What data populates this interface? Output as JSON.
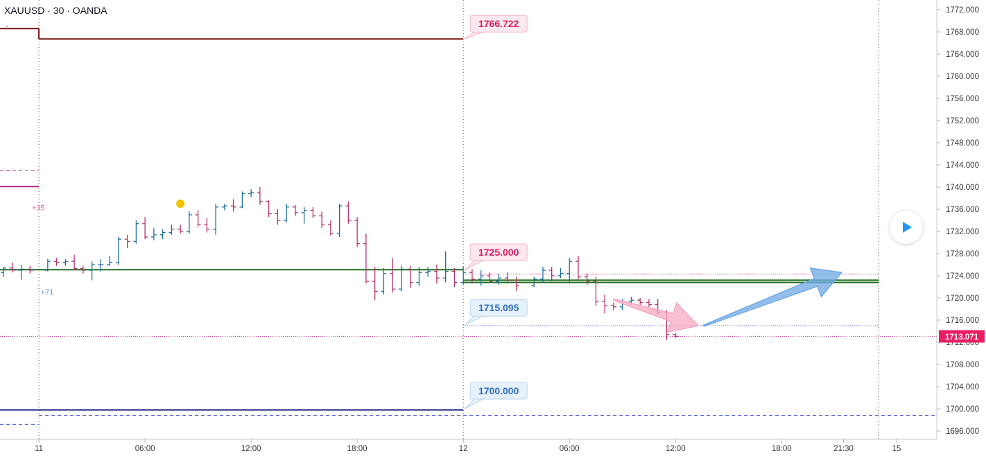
{
  "header": {
    "symbol_line": "XAUUSD · 30 · OANDA",
    "dot": "·"
  },
  "colors": {
    "up_bar": "#1f6e9e",
    "down_bar": "#b5316f",
    "dark_red_line": "#7a1010",
    "green_line": "#1b6e1b",
    "navy_line": "#1a237e",
    "magenta_line": "#b4237c",
    "blue_dashed": "#3f51d9",
    "pink_label": "#d81b60",
    "blue_label": "#2f6fbf",
    "price_tag": "#e91e63",
    "pink_arrow": "#f7a9c1",
    "blue_arrow": "#6fa8e6"
  },
  "chart_data": {
    "type": "bar",
    "title": "XAUUSD · 30 · OANDA",
    "y_axis": {
      "ticks": [
        1772,
        1768,
        1764,
        1760,
        1756,
        1752,
        1748,
        1744,
        1740,
        1736,
        1732,
        1728,
        1724,
        1720,
        1716,
        1712,
        1708,
        1704,
        1700,
        1696
      ],
      "tick_labels": [
        "1772.000",
        "1768.000",
        "1764.000",
        "1760.000",
        "1756.000",
        "1752.000",
        "1748.000",
        "1744.000",
        "1740.000",
        "1736.000",
        "1732.000",
        "1728.000",
        "1724.000",
        "1720.000",
        "1716.000",
        "1712.000",
        "1708.000",
        "1704.000",
        "1700.000",
        "1696.000"
      ],
      "range": [
        1695,
        1773
      ]
    },
    "x_axis": {
      "tick_labels": [
        "11",
        "06:00",
        "12:00",
        "18:00",
        "12",
        "06:00",
        "12:00",
        "18:00",
        "21:30",
        "15"
      ],
      "tick_hours": [
        0,
        6,
        12,
        18,
        24,
        30,
        36,
        42,
        45.5,
        48.5
      ],
      "range": [
        -2.2,
        52.5
      ]
    },
    "session_separators_hours": [
      0,
      24,
      47.5
    ],
    "current_price": {
      "value": 1713.071,
      "label": "1713.071"
    },
    "labels": [
      {
        "text": "1766.722",
        "price": 1766.722,
        "color": "pink"
      },
      {
        "text": "1725.000",
        "price": 1725.0,
        "color": "pink"
      },
      {
        "text": "1715.095",
        "price": 1715.095,
        "color": "blue"
      },
      {
        "text": "1700.000",
        "price": 1700.0,
        "color": "blue"
      }
    ],
    "annotations": [
      {
        "text": "+35",
        "hour": -0.4,
        "price": 1735.8
      },
      {
        "text": "+71",
        "hour": 0.1,
        "price": 1720.6
      }
    ],
    "event_marker": {
      "hour": 8,
      "price": 1737
    },
    "levels": [
      {
        "name": "prior-day-high",
        "segments": [
          [
            -2.2,
            0,
            1768.6
          ],
          [
            0,
            24,
            1766.722
          ]
        ],
        "style": "solid",
        "color": "dark_red_line"
      },
      {
        "name": "pivot-green",
        "segments": [
          [
            -2.2,
            24,
            1725.1
          ]
        ],
        "style": "solid",
        "color": "green_line"
      },
      {
        "name": "pivot-green-next",
        "segments": [
          [
            24,
            47.5,
            1722.8
          ],
          [
            24,
            47.5,
            1723.2
          ]
        ],
        "style": "solid",
        "color": "green_line"
      },
      {
        "name": "support-navy",
        "segments": [
          [
            -2.2,
            24,
            1699.8
          ]
        ],
        "style": "solid",
        "color": "navy_line"
      },
      {
        "name": "support-dashed",
        "segments": [
          [
            0,
            51.8,
            1698.8
          ],
          [
            -2.2,
            0,
            1697.2
          ]
        ],
        "style": "dashed",
        "color": "blue_dashed"
      },
      {
        "name": "resistance-magenta",
        "segments": [
          [
            -2.2,
            0,
            1740.1
          ]
        ],
        "style": "solid",
        "color": "magenta_line"
      },
      {
        "name": "resistance-magenta-dashed",
        "segments": [
          [
            -2.2,
            0,
            1743.0
          ]
        ],
        "style": "dashed",
        "color": "magenta_line"
      },
      {
        "name": "resistance-dotted",
        "segments": [
          [
            24,
            47.5,
            1724.3
          ]
        ],
        "style": "dotted",
        "color": "magenta_line"
      },
      {
        "name": "support-dotted",
        "segments": [
          [
            24,
            47.5,
            1715.0
          ]
        ],
        "style": "dotted",
        "color": "blue_dashed"
      },
      {
        "name": "current-price-dotted",
        "segments": [
          [
            -2.2,
            51.8,
            1713.071
          ]
        ],
        "style": "dotted",
        "color": "magenta_line"
      }
    ],
    "arrows": [
      {
        "name": "pink-down-arrow",
        "from": [
          32.5,
          1719.7
        ],
        "to": [
          37.3,
          1715.0
        ],
        "color": "pink_arrow"
      },
      {
        "name": "blue-up-arrow",
        "from": [
          37.6,
          1715.0
        ],
        "to": [
          45.4,
          1724.6
        ],
        "color": "blue_arrow"
      }
    ],
    "bars": [
      {
        "t": -2.0,
        "o": 1724.6,
        "h": 1725.6,
        "l": 1723.8,
        "c": 1725.4
      },
      {
        "t": -1.5,
        "o": 1725.4,
        "h": 1726.4,
        "l": 1724.6,
        "c": 1725.0
      },
      {
        "t": -1.0,
        "o": 1725.0,
        "h": 1726.0,
        "l": 1723.3,
        "c": 1725.2
      },
      {
        "t": -0.5,
        "o": 1725.2,
        "h": 1725.8,
        "l": 1724.4,
        "c": 1725.0
      },
      {
        "t": 0.5,
        "o": 1725.0,
        "h": 1727.0,
        "l": 1724.8,
        "c": 1726.6
      },
      {
        "t": 1.0,
        "o": 1726.6,
        "h": 1727.2,
        "l": 1725.8,
        "c": 1726.4
      },
      {
        "t": 1.5,
        "o": 1726.4,
        "h": 1727.0,
        "l": 1725.8,
        "c": 1726.6
      },
      {
        "t": 2.0,
        "o": 1726.6,
        "h": 1727.8,
        "l": 1725.0,
        "c": 1725.3
      },
      {
        "t": 2.5,
        "o": 1725.3,
        "h": 1725.8,
        "l": 1724.4,
        "c": 1725.0
      },
      {
        "t": 3.0,
        "o": 1725.0,
        "h": 1726.6,
        "l": 1723.2,
        "c": 1726.0
      },
      {
        "t": 3.5,
        "o": 1726.0,
        "h": 1727.0,
        "l": 1724.8,
        "c": 1726.0
      },
      {
        "t": 4.0,
        "o": 1726.0,
        "h": 1727.6,
        "l": 1725.8,
        "c": 1726.4
      },
      {
        "t": 4.5,
        "o": 1726.4,
        "h": 1731.0,
        "l": 1726.0,
        "c": 1730.6
      },
      {
        "t": 5.0,
        "o": 1730.6,
        "h": 1731.4,
        "l": 1729.0,
        "c": 1730.2
      },
      {
        "t": 5.5,
        "o": 1730.2,
        "h": 1734.0,
        "l": 1729.8,
        "c": 1733.4
      },
      {
        "t": 6.0,
        "o": 1733.4,
        "h": 1734.6,
        "l": 1730.6,
        "c": 1731.0
      },
      {
        "t": 6.5,
        "o": 1731.0,
        "h": 1732.6,
        "l": 1730.4,
        "c": 1731.4
      },
      {
        "t": 7.0,
        "o": 1731.4,
        "h": 1732.4,
        "l": 1730.6,
        "c": 1731.8
      },
      {
        "t": 7.5,
        "o": 1731.8,
        "h": 1733.2,
        "l": 1731.4,
        "c": 1732.4
      },
      {
        "t": 8.0,
        "o": 1732.4,
        "h": 1733.2,
        "l": 1731.6,
        "c": 1732.0
      },
      {
        "t": 8.5,
        "o": 1732.0,
        "h": 1735.6,
        "l": 1731.6,
        "c": 1735.0
      },
      {
        "t": 9.0,
        "o": 1735.0,
        "h": 1735.8,
        "l": 1732.8,
        "c": 1733.2
      },
      {
        "t": 9.5,
        "o": 1733.2,
        "h": 1734.4,
        "l": 1731.8,
        "c": 1732.4
      },
      {
        "t": 10.0,
        "o": 1732.4,
        "h": 1737.0,
        "l": 1731.4,
        "c": 1736.4
      },
      {
        "t": 10.5,
        "o": 1736.4,
        "h": 1737.0,
        "l": 1735.8,
        "c": 1736.6
      },
      {
        "t": 11.0,
        "o": 1736.6,
        "h": 1737.8,
        "l": 1735.6,
        "c": 1736.4
      },
      {
        "t": 11.5,
        "o": 1736.4,
        "h": 1739.2,
        "l": 1736.2,
        "c": 1738.8
      },
      {
        "t": 12.0,
        "o": 1738.8,
        "h": 1739.6,
        "l": 1738.2,
        "c": 1739.0
      },
      {
        "t": 12.5,
        "o": 1739.0,
        "h": 1740.0,
        "l": 1736.8,
        "c": 1737.4
      },
      {
        "t": 13.0,
        "o": 1737.4,
        "h": 1737.6,
        "l": 1734.6,
        "c": 1735.2
      },
      {
        "t": 13.5,
        "o": 1735.2,
        "h": 1736.0,
        "l": 1733.2,
        "c": 1734.0
      },
      {
        "t": 14.0,
        "o": 1734.0,
        "h": 1737.0,
        "l": 1733.6,
        "c": 1736.4
      },
      {
        "t": 14.5,
        "o": 1736.4,
        "h": 1736.8,
        "l": 1734.8,
        "c": 1735.4
      },
      {
        "t": 15.0,
        "o": 1735.4,
        "h": 1736.4,
        "l": 1733.4,
        "c": 1735.8
      },
      {
        "t": 15.5,
        "o": 1735.8,
        "h": 1736.4,
        "l": 1734.4,
        "c": 1734.8
      },
      {
        "t": 16.0,
        "o": 1734.8,
        "h": 1735.6,
        "l": 1732.6,
        "c": 1733.2
      },
      {
        "t": 16.5,
        "o": 1733.2,
        "h": 1734.0,
        "l": 1731.2,
        "c": 1731.6
      },
      {
        "t": 17.0,
        "o": 1731.6,
        "h": 1737.0,
        "l": 1731.0,
        "c": 1736.6
      },
      {
        "t": 17.5,
        "o": 1736.6,
        "h": 1737.4,
        "l": 1733.4,
        "c": 1734.0
      },
      {
        "t": 18.0,
        "o": 1734.0,
        "h": 1734.6,
        "l": 1729.2,
        "c": 1729.8
      },
      {
        "t": 18.5,
        "o": 1729.8,
        "h": 1731.6,
        "l": 1722.6,
        "c": 1723.0
      },
      {
        "t": 19.0,
        "o": 1723.0,
        "h": 1725.6,
        "l": 1719.6,
        "c": 1721.2
      },
      {
        "t": 19.5,
        "o": 1721.2,
        "h": 1725.4,
        "l": 1720.6,
        "c": 1724.4
      },
      {
        "t": 20.0,
        "o": 1724.4,
        "h": 1727.2,
        "l": 1721.0,
        "c": 1721.6
      },
      {
        "t": 20.5,
        "o": 1721.6,
        "h": 1725.8,
        "l": 1721.2,
        "c": 1725.2
      },
      {
        "t": 21.0,
        "o": 1725.2,
        "h": 1725.8,
        "l": 1721.8,
        "c": 1722.8
      },
      {
        "t": 21.5,
        "o": 1722.8,
        "h": 1725.6,
        "l": 1722.2,
        "c": 1724.6
      },
      {
        "t": 22.0,
        "o": 1724.6,
        "h": 1725.6,
        "l": 1723.8,
        "c": 1724.8
      },
      {
        "t": 22.5,
        "o": 1724.8,
        "h": 1726.0,
        "l": 1722.6,
        "c": 1723.6
      },
      {
        "t": 23.0,
        "o": 1723.6,
        "h": 1728.4,
        "l": 1722.8,
        "c": 1724.8
      },
      {
        "t": 23.5,
        "o": 1724.8,
        "h": 1725.4,
        "l": 1722.0,
        "c": 1722.8
      },
      {
        "t": 24.0,
        "o": 1722.8,
        "h": 1725.6,
        "l": 1722.4,
        "c": 1724.6
      },
      {
        "t": 24.5,
        "o": 1724.6,
        "h": 1725.2,
        "l": 1722.6,
        "c": 1723.4
      },
      {
        "t": 25.0,
        "o": 1723.4,
        "h": 1725.0,
        "l": 1722.2,
        "c": 1724.0
      },
      {
        "t": 25.5,
        "o": 1724.0,
        "h": 1724.6,
        "l": 1722.8,
        "c": 1723.0
      },
      {
        "t": 26.0,
        "o": 1723.0,
        "h": 1724.4,
        "l": 1722.4,
        "c": 1723.6
      },
      {
        "t": 26.5,
        "o": 1723.6,
        "h": 1724.6,
        "l": 1722.6,
        "c": 1723.2
      },
      {
        "t": 27.0,
        "o": 1723.2,
        "h": 1723.8,
        "l": 1721.2,
        "c": 1722.2
      },
      {
        "t": 28.0,
        "o": 1722.2,
        "h": 1723.8,
        "l": 1722.0,
        "c": 1723.4
      },
      {
        "t": 28.5,
        "o": 1723.4,
        "h": 1725.6,
        "l": 1722.8,
        "c": 1725.0
      },
      {
        "t": 29.0,
        "o": 1725.0,
        "h": 1725.6,
        "l": 1723.0,
        "c": 1724.0
      },
      {
        "t": 29.5,
        "o": 1724.0,
        "h": 1725.4,
        "l": 1723.6,
        "c": 1724.4
      },
      {
        "t": 30.0,
        "o": 1724.4,
        "h": 1727.2,
        "l": 1722.6,
        "c": 1726.6
      },
      {
        "t": 30.5,
        "o": 1726.6,
        "h": 1727.6,
        "l": 1723.2,
        "c": 1723.8
      },
      {
        "t": 31.0,
        "o": 1723.8,
        "h": 1724.4,
        "l": 1722.4,
        "c": 1723.0
      },
      {
        "t": 31.5,
        "o": 1723.0,
        "h": 1723.8,
        "l": 1718.6,
        "c": 1719.4
      },
      {
        "t": 32.0,
        "o": 1719.4,
        "h": 1720.6,
        "l": 1717.2,
        "c": 1718.6
      },
      {
        "t": 32.5,
        "o": 1718.6,
        "h": 1719.2,
        "l": 1717.8,
        "c": 1718.4
      },
      {
        "t": 33.0,
        "o": 1718.4,
        "h": 1719.8,
        "l": 1717.8,
        "c": 1719.4
      },
      {
        "t": 33.5,
        "o": 1719.4,
        "h": 1720.2,
        "l": 1718.8,
        "c": 1719.6
      },
      {
        "t": 34.0,
        "o": 1719.6,
        "h": 1720.0,
        "l": 1718.6,
        "c": 1719.2
      },
      {
        "t": 34.5,
        "o": 1719.2,
        "h": 1719.8,
        "l": 1718.4,
        "c": 1718.8
      },
      {
        "t": 35.0,
        "o": 1718.8,
        "h": 1719.8,
        "l": 1717.0,
        "c": 1717.4
      },
      {
        "t": 35.5,
        "o": 1717.4,
        "h": 1717.8,
        "l": 1712.4,
        "c": 1713.4
      },
      {
        "t": 36.0,
        "o": 1713.4,
        "h": 1713.6,
        "l": 1712.8,
        "c": 1713.071
      }
    ]
  },
  "play_button": {
    "label": ""
  }
}
